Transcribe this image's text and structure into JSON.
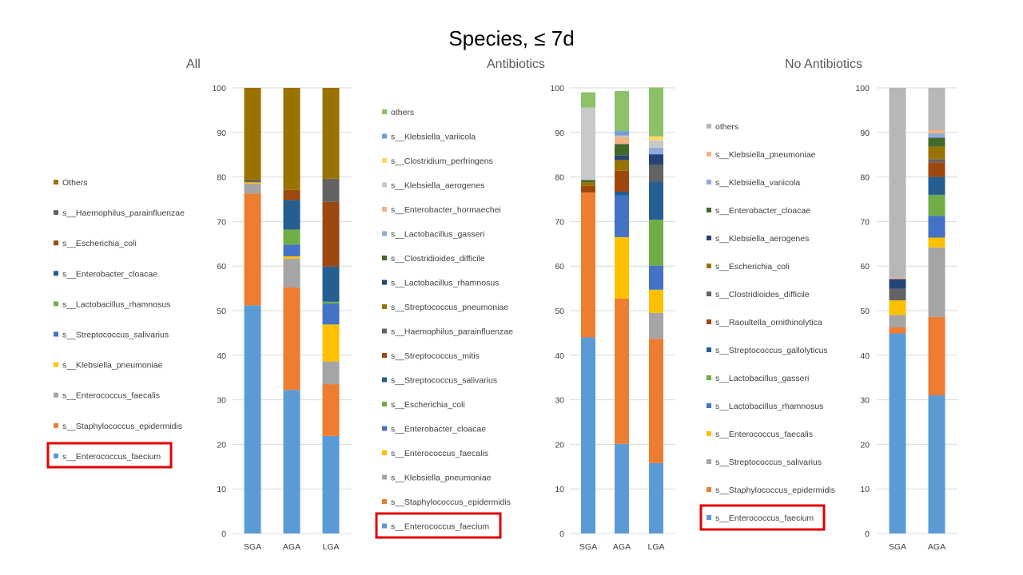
{
  "title": "Species, ≤ 7d",
  "chart_data": [
    {
      "type": "bar",
      "stacked": true,
      "title": "All",
      "categories": [
        "SGA",
        "AGA",
        "LGA"
      ],
      "ylim": [
        0,
        100
      ],
      "yticks": [
        0,
        10,
        20,
        30,
        40,
        50,
        60,
        70,
        80,
        90,
        100
      ],
      "grid": true,
      "legend_position": "left",
      "highlighted_legend_entry": "s__Enterococcus_faecium",
      "series": [
        {
          "name": "s__Enterococcus_faecium",
          "color": "#5B9BD5",
          "values": [
            51.2,
            32.2,
            21.9
          ]
        },
        {
          "name": "s__Staphylococcus_epidermidis",
          "color": "#ED7D31",
          "values": [
            25.1,
            23.0,
            11.6
          ]
        },
        {
          "name": "s__Enterococcus_faecalis",
          "color": "#A5A5A5",
          "values": [
            2.2,
            6.5,
            5.1
          ]
        },
        {
          "name": "s__Klebsiella_pneumoniae",
          "color": "#FFC000",
          "values": [
            0.3,
            0.5,
            8.3
          ]
        },
        {
          "name": "s__Streptococcus_salivarius",
          "color": "#4472C4",
          "values": [
            0.0,
            2.6,
            4.7
          ]
        },
        {
          "name": "s__Lactobacillus_rhamnosus",
          "color": "#70AD47",
          "values": [
            0.0,
            3.4,
            0.4
          ]
        },
        {
          "name": "s__Enterobacter_cloacae",
          "color": "#255E91",
          "values": [
            0.0,
            6.6,
            7.9
          ]
        },
        {
          "name": "s__Escherichia_coli",
          "color": "#9E480E",
          "values": [
            0.0,
            2.3,
            14.5
          ]
        },
        {
          "name": "s__Haemophilus_parainfluenzae",
          "color": "#636363",
          "values": [
            0.5,
            0.0,
            5.2
          ]
        },
        {
          "name": "Others",
          "color": "#997300",
          "values": [
            20.7,
            22.9,
            20.4
          ]
        }
      ]
    },
    {
      "type": "bar",
      "stacked": true,
      "title": "Antibiotics",
      "categories": [
        "SGA",
        "AGA",
        "LGA"
      ],
      "ylim": [
        0,
        100
      ],
      "yticks": [
        0,
        10,
        20,
        30,
        40,
        50,
        60,
        70,
        80,
        90,
        100
      ],
      "grid": true,
      "legend_position": "left",
      "highlighted_legend_entry": "s__Enterococcus_faecium",
      "series": [
        {
          "name": "s__Enterococcus_faecium",
          "color": "#5B9BD5",
          "values": [
            44.0,
            20.1,
            15.8
          ]
        },
        {
          "name": "s__Staphylococcus_epidermidis",
          "color": "#ED7D31",
          "values": [
            32.5,
            32.6,
            27.9
          ]
        },
        {
          "name": "s__Klebsiella_pneumoniae",
          "color": "#A5A5A5",
          "values": [
            0.0,
            0.0,
            5.8
          ]
        },
        {
          "name": "s__Enterococcus_faecalis",
          "color": "#FFC000",
          "values": [
            0.0,
            13.8,
            5.2
          ]
        },
        {
          "name": "s__Enterobacter_cloacae",
          "color": "#4472C4",
          "values": [
            0.0,
            9.4,
            5.4
          ]
        },
        {
          "name": "s__Escherichia_coli",
          "color": "#70AD47",
          "values": [
            0.0,
            0.0,
            10.3
          ]
        },
        {
          "name": "s__Streptococcus_salivarius",
          "color": "#255E91",
          "values": [
            0.0,
            0.8,
            8.6
          ]
        },
        {
          "name": "s__Streptococcus_mitis",
          "color": "#9E480E",
          "values": [
            1.5,
            4.7,
            0.0
          ]
        },
        {
          "name": "s__Haemophilus_parainfluenzae",
          "color": "#636363",
          "values": [
            0.0,
            0.0,
            3.8
          ]
        },
        {
          "name": "s__Streptococcus_pneumoniae",
          "color": "#997300",
          "values": [
            0.8,
            2.4,
            0.0
          ]
        },
        {
          "name": "s__Lactobacillus_rhamnosus",
          "color": "#264478",
          "values": [
            0.0,
            1.0,
            2.3
          ]
        },
        {
          "name": "s__Clostridioides_difficile",
          "color": "#43682B",
          "values": [
            0.5,
            2.6,
            0.0
          ]
        },
        {
          "name": "s__Lactobacillus_gasseri",
          "color": "#8FAADC",
          "values": [
            0.0,
            0.0,
            1.5
          ]
        },
        {
          "name": "s__Enterobacter_hormaechei",
          "color": "#F4B183",
          "values": [
            0.0,
            1.6,
            0.0
          ]
        },
        {
          "name": "s__Klebsiella_aerogenes",
          "color": "#C9C9C9",
          "values": [
            16.3,
            0.3,
            1.6
          ]
        },
        {
          "name": "s__Clostridium_perfringens",
          "color": "#FFD966",
          "values": [
            0.0,
            0.0,
            0.9
          ]
        },
        {
          "name": "s__Klebsiella_variicola",
          "color": "#6F9FD8",
          "values": [
            0.0,
            1.0,
            0.0
          ]
        },
        {
          "name": "others",
          "color": "#8CC168",
          "values": [
            3.4,
            9.0,
            11.0
          ]
        }
      ]
    },
    {
      "type": "bar",
      "stacked": true,
      "title": "No Antibiotics",
      "categories": [
        "SGA",
        "AGA"
      ],
      "ylim": [
        0,
        100
      ],
      "yticks": [
        0,
        10,
        20,
        30,
        40,
        50,
        60,
        70,
        80,
        90,
        100
      ],
      "grid": true,
      "legend_position": "left",
      "highlighted_legend_entry": "s__Enterococcus_faecium",
      "series": [
        {
          "name": "s__Enterococcus_faecium",
          "color": "#5B9BD5",
          "values": [
            44.9,
            31.0
          ]
        },
        {
          "name": "s__Staphylococcus_epidermidis",
          "color": "#ED7D31",
          "values": [
            1.4,
            17.6
          ]
        },
        {
          "name": "s__Streptococcus_salivarius",
          "color": "#A5A5A5",
          "values": [
            2.7,
            15.6
          ]
        },
        {
          "name": "s__Enterococcus_faecalis",
          "color": "#FFC000",
          "values": [
            3.3,
            2.2
          ]
        },
        {
          "name": "s__Lactobacillus_rhamnosus",
          "color": "#4472C4",
          "values": [
            0.0,
            4.9
          ]
        },
        {
          "name": "s__Lactobacillus_gasseri",
          "color": "#70AD47",
          "values": [
            0.0,
            4.7
          ]
        },
        {
          "name": "s__Streptococcus_gallolyticus",
          "color": "#255E91",
          "values": [
            0.0,
            4.0
          ]
        },
        {
          "name": "s__Raoultella_ornithinolytica",
          "color": "#9E480E",
          "values": [
            0.0,
            3.3
          ]
        },
        {
          "name": "s__Clostridioides_difficile",
          "color": "#636363",
          "values": [
            2.6,
            0.7
          ]
        },
        {
          "name": "s__Escherichia_coli",
          "color": "#997300",
          "values": [
            0.0,
            2.8
          ]
        },
        {
          "name": "s__Klebsiella_aerogenes",
          "color": "#264478",
          "values": [
            2.2,
            0.0
          ]
        },
        {
          "name": "s__Enterobacter_cloacae",
          "color": "#43682B",
          "values": [
            0.0,
            2.0
          ]
        },
        {
          "name": "s__Klebsiella_variicola",
          "color": "#8FAADC",
          "values": [
            0.0,
            1.0
          ]
        },
        {
          "name": "s__Klebsiella_pneumoniae",
          "color": "#F4B183",
          "values": [
            0.3,
            0.7
          ]
        },
        {
          "name": "others",
          "color": "#B7B7B7",
          "values": [
            42.6,
            9.5
          ]
        }
      ]
    }
  ]
}
